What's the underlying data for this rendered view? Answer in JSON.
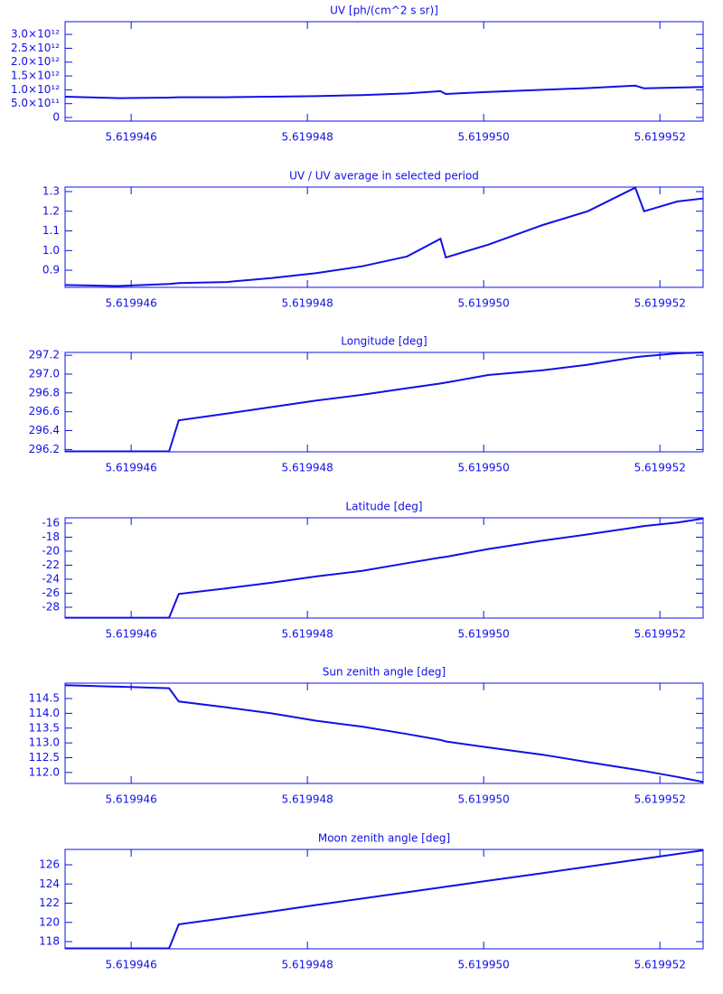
{
  "chart_data": [
    {
      "type": "line",
      "title": "UV [ph/(cm^2 s sr)]",
      "color": "#1010e8",
      "x": [
        5.61994525,
        5.61994585,
        5.61994643,
        5.61994654,
        5.61994708,
        5.61994759,
        5.6199481,
        5.61994862,
        5.61994913,
        5.61994951,
        5.61994957,
        5.61995005,
        5.61995067,
        5.61995118,
        5.61995172,
        5.61995182,
        5.6199522,
        5.61995249
      ],
      "values": [
        750000000000,
        700000000000,
        720000000000,
        730000000000,
        730000000000,
        750000000000,
        770000000000,
        810000000000,
        870000000000,
        950000000000,
        850000000000,
        920000000000,
        1000000000000,
        1060000000000,
        1150000000000,
        1050000000000,
        1080000000000,
        1100000000000
      ],
      "xlim": [
        5.61994525,
        5.61995249
      ],
      "ylim": [
        -130000000000,
        3460000000000
      ],
      "xticks": [
        5.619946,
        5.619948,
        {
          "value": 5.61995,
          "label": "5.619950"
        },
        5.619952
      ],
      "yticks": [
        0,
        {
          "value": 500000000000,
          "label": "5.0×10¹¹"
        },
        {
          "value": 1000000000000,
          "label": "1.0×10¹²"
        },
        {
          "value": 1500000000000,
          "label": "1.5×10¹²"
        },
        {
          "value": 2000000000000,
          "label": "2.0×10¹²"
        },
        {
          "value": 2500000000000,
          "label": "2.5×10¹²"
        },
        {
          "value": 3000000000000,
          "label": "3.0×10¹²"
        }
      ]
    },
    {
      "type": "line",
      "title": "UV / UV average in selected period",
      "color": "#1010e8",
      "x": [
        5.61994525,
        5.61994585,
        5.61994643,
        5.61994654,
        5.61994708,
        5.61994759,
        5.6199481,
        5.61994862,
        5.61994913,
        5.61994951,
        5.61994957,
        5.61995005,
        5.61995067,
        5.61995118,
        5.61995172,
        5.61995182,
        5.6199522,
        5.61995249
      ],
      "values": [
        0.825,
        0.82,
        0.83,
        0.835,
        0.84,
        0.86,
        0.885,
        0.92,
        0.97,
        1.06,
        0.965,
        1.03,
        1.13,
        1.2,
        1.32,
        1.2,
        1.25,
        1.265
      ],
      "xlim": [
        5.61994525,
        5.61995249
      ],
      "ylim": [
        0.813,
        1.323
      ],
      "xticks": [
        5.619946,
        5.619948,
        {
          "value": 5.61995,
          "label": "5.619950"
        },
        5.619952
      ],
      "yticks": [
        0.9,
        {
          "value": 1,
          "label": "1.0"
        },
        1.1,
        1.2,
        1.3
      ]
    },
    {
      "type": "line",
      "title": "Longitude [deg]",
      "color": "#1010e8",
      "x": [
        5.61994525,
        5.61994585,
        5.61994643,
        5.61994654,
        5.61994708,
        5.61994759,
        5.6199481,
        5.61994862,
        5.61994913,
        5.61994951,
        5.61994957,
        5.61995005,
        5.61995067,
        5.61995118,
        5.61995172,
        5.61995182,
        5.6199522,
        5.61995249
      ],
      "values": [
        296.18,
        296.18,
        296.18,
        296.51,
        296.58,
        296.65,
        296.72,
        296.78,
        296.85,
        296.9,
        296.91,
        296.99,
        297.04,
        297.1,
        297.18,
        297.19,
        297.22,
        297.23
      ],
      "xlim": [
        5.61994525,
        5.61995249
      ],
      "ylim": [
        296.175,
        297.23
      ],
      "xticks": [
        5.619946,
        5.619948,
        {
          "value": 5.61995,
          "label": "5.619950"
        },
        5.619952
      ],
      "yticks": [
        296.2,
        296.4,
        296.6,
        296.8,
        {
          "value": 297,
          "label": "297.0"
        },
        297.2
      ]
    },
    {
      "type": "line",
      "title": "Latitude [deg]",
      "color": "#1010e8",
      "x": [
        5.61994525,
        5.61994585,
        5.61994643,
        5.61994654,
        5.61994708,
        5.61994759,
        5.6199481,
        5.61994862,
        5.61994913,
        5.61994951,
        5.61994957,
        5.61995005,
        5.61995067,
        5.61995118,
        5.61995172,
        5.61995182,
        5.6199522,
        5.61995249
      ],
      "values": [
        -29.5,
        -29.5,
        -29.5,
        -26.1,
        -25.3,
        -24.5,
        -23.6,
        -22.8,
        -21.7,
        -20.9,
        -20.8,
        -19.7,
        -18.5,
        -17.6,
        -16.6,
        -16.4,
        -15.9,
        -15.35
      ],
      "xlim": [
        5.61994525,
        5.61995249
      ],
      "ylim": [
        -29.55,
        -15.23
      ],
      "xticks": [
        5.619946,
        5.619948,
        {
          "value": 5.61995,
          "label": "5.619950"
        },
        5.619952
      ],
      "yticks": [
        -28,
        -26,
        -24,
        -22,
        -20,
        -18,
        -16
      ]
    },
    {
      "type": "line",
      "title": "Sun zenith angle [deg]",
      "color": "#1010e8",
      "x": [
        5.61994525,
        5.61994585,
        5.61994643,
        5.61994654,
        5.61994708,
        5.61994759,
        5.6199481,
        5.61994862,
        5.61994913,
        5.61994951,
        5.61994957,
        5.61995005,
        5.61995067,
        5.61995118,
        5.61995172,
        5.61995182,
        5.6199522,
        5.61995249
      ],
      "values": [
        114.95,
        114.9,
        114.85,
        114.4,
        114.2,
        114.0,
        113.75,
        113.55,
        113.3,
        113.1,
        113.05,
        112.85,
        112.6,
        112.35,
        112.1,
        112.05,
        111.85,
        111.68
      ],
      "xlim": [
        5.61994525,
        5.61995249
      ],
      "ylim": [
        111.63,
        115.02
      ],
      "xticks": [
        5.619946,
        5.619948,
        {
          "value": 5.61995,
          "label": "5.619950"
        },
        5.619952
      ],
      "yticks": [
        {
          "value": 112,
          "label": "112.0"
        },
        112.5,
        {
          "value": 113,
          "label": "113.0"
        },
        113.5,
        {
          "value": 114,
          "label": "114.0"
        },
        114.5
      ]
    },
    {
      "type": "line",
      "title": "Moon zenith angle [deg]",
      "color": "#1010e8",
      "x": [
        5.61994525,
        5.61994585,
        5.61994643,
        5.61994654,
        5.61994708,
        5.61994759,
        5.6199481,
        5.61994862,
        5.61994913,
        5.61994951,
        5.61994957,
        5.61995005,
        5.61995067,
        5.61995118,
        5.61995172,
        5.61995182,
        5.6199522,
        5.61995249
      ],
      "values": [
        117.3,
        117.3,
        117.3,
        119.8,
        120.48,
        121.14,
        121.81,
        122.48,
        123.14,
        123.64,
        123.71,
        124.34,
        125.13,
        125.8,
        126.51,
        126.63,
        127.13,
        127.51
      ],
      "xlim": [
        5.61994525,
        5.61995249
      ],
      "ylim": [
        117.25,
        127.6
      ],
      "xticks": [
        5.619946,
        5.619948,
        {
          "value": 5.61995,
          "label": "5.619950"
        },
        5.619952
      ],
      "yticks": [
        118,
        120,
        122,
        124,
        126
      ]
    }
  ]
}
